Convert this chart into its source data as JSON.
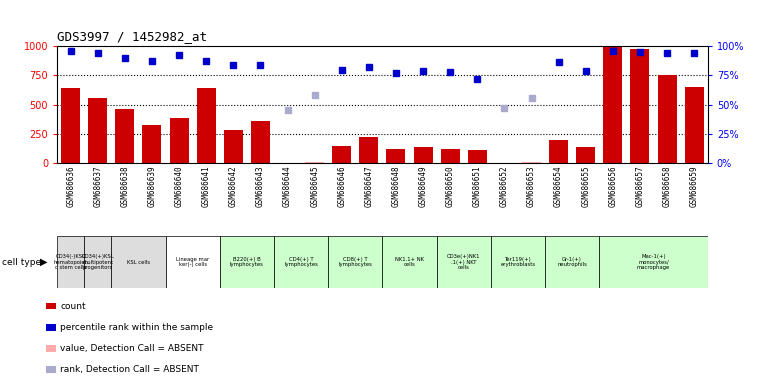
{
  "title": "GDS3997 / 1452982_at",
  "samples": [
    "GSM686636",
    "GSM686637",
    "GSM686638",
    "GSM686639",
    "GSM686640",
    "GSM686641",
    "GSM686642",
    "GSM686643",
    "GSM686644",
    "GSM686645",
    "GSM686646",
    "GSM686647",
    "GSM686648",
    "GSM686649",
    "GSM686650",
    "GSM686651",
    "GSM686652",
    "GSM686653",
    "GSM686654",
    "GSM686655",
    "GSM686656",
    "GSM686657",
    "GSM686658",
    "GSM686659"
  ],
  "count_values": [
    640,
    560,
    460,
    330,
    390,
    640,
    280,
    360,
    5,
    10,
    150,
    225,
    120,
    140,
    120,
    110,
    5,
    10,
    200,
    140,
    990,
    975,
    750,
    650
  ],
  "count_absent": [
    false,
    false,
    false,
    false,
    false,
    false,
    false,
    false,
    true,
    true,
    false,
    false,
    false,
    false,
    false,
    false,
    true,
    true,
    false,
    false,
    false,
    false,
    false,
    false
  ],
  "absent_count_values": [
    0,
    0,
    0,
    0,
    0,
    0,
    0,
    0,
    5,
    10,
    0,
    0,
    0,
    0,
    0,
    0,
    5,
    10,
    0,
    0,
    0,
    0,
    0,
    0
  ],
  "percentile_values": [
    96,
    94,
    90,
    87,
    92,
    87,
    84,
    84,
    0,
    0,
    80,
    82,
    77,
    79,
    78,
    72,
    0,
    0,
    86,
    79,
    96,
    95,
    94,
    94
  ],
  "percentile_absent": [
    false,
    false,
    false,
    false,
    false,
    false,
    false,
    false,
    true,
    true,
    false,
    false,
    false,
    false,
    false,
    false,
    true,
    true,
    false,
    false,
    false,
    false,
    false,
    false
  ],
  "absent_percentile_values": [
    0,
    0,
    0,
    0,
    0,
    0,
    0,
    0,
    45,
    58,
    0,
    0,
    0,
    0,
    0,
    0,
    47,
    56,
    0,
    0,
    0,
    0,
    0,
    0
  ],
  "ylim": [
    0,
    1000
  ],
  "y2lim": [
    0,
    100
  ],
  "yticks": [
    0,
    250,
    500,
    750,
    1000
  ],
  "y2ticks": [
    0,
    25,
    50,
    75,
    100
  ],
  "bar_color": "#cc0000",
  "bar_absent_color": "#ffaaaa",
  "dot_color": "#0000cc",
  "dot_absent_color": "#aaaacc",
  "bg_color": "#ffffff",
  "cell_type_groups": [
    {
      "label": "CD34(-)KSL\nhematopoiet\nc stem cells",
      "start": 0,
      "end": 0,
      "color": "#dddddd"
    },
    {
      "label": "CD34(+)KSL\nmultipotent\nprogenitors",
      "start": 1,
      "end": 1,
      "color": "#dddddd"
    },
    {
      "label": "KSL cells",
      "start": 2,
      "end": 3,
      "color": "#dddddd"
    },
    {
      "label": "Lineage mar\nker(-) cells",
      "start": 4,
      "end": 5,
      "color": "#ffffff"
    },
    {
      "label": "B220(+) B\nlymphocytes",
      "start": 6,
      "end": 7,
      "color": "#ccffcc"
    },
    {
      "label": "CD4(+) T\nlymphocytes",
      "start": 8,
      "end": 9,
      "color": "#ccffcc"
    },
    {
      "label": "CD8(+) T\nlymphocytes",
      "start": 10,
      "end": 11,
      "color": "#ccffcc"
    },
    {
      "label": "NK1.1+ NK\ncells",
      "start": 12,
      "end": 13,
      "color": "#ccffcc"
    },
    {
      "label": "CD3e(+)NK1\n.1(+) NKT\ncells",
      "start": 14,
      "end": 15,
      "color": "#ccffcc"
    },
    {
      "label": "Ter119(+)\nerythroblasts",
      "start": 16,
      "end": 17,
      "color": "#ccffcc"
    },
    {
      "label": "Gr-1(+)\nneutrophils",
      "start": 18,
      "end": 19,
      "color": "#ccffcc"
    },
    {
      "label": "Mac-1(+)\nmonocytes/\nmacrophage",
      "start": 20,
      "end": 23,
      "color": "#ccffcc"
    }
  ],
  "legend_items": [
    {
      "color": "#cc0000",
      "label": "count"
    },
    {
      "color": "#0000cc",
      "label": "percentile rank within the sample"
    },
    {
      "color": "#ffaaaa",
      "label": "value, Detection Call = ABSENT"
    },
    {
      "color": "#aaaacc",
      "label": "rank, Detection Call = ABSENT"
    }
  ]
}
